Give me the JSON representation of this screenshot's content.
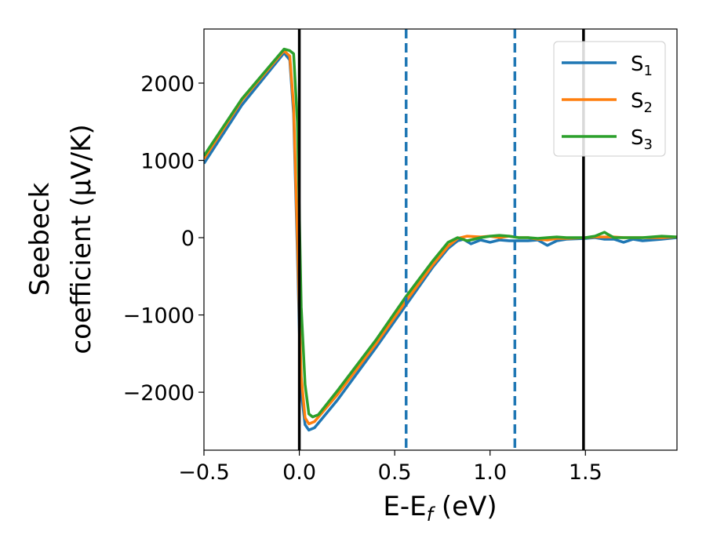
{
  "chart_data": {
    "type": "line",
    "xlabel": "E-E_f (eV)",
    "ylabel_line1": "Seebeck",
    "ylabel_line2": "coefficient  (μV/K)",
    "xlim": [
      -0.5,
      1.98
    ],
    "ylim": [
      -2750,
      2700
    ],
    "xticks": [
      -0.5,
      0.0,
      0.5,
      1.0,
      1.5
    ],
    "xtick_labels": [
      "−0.5",
      "0.0",
      "0.5",
      "1.0",
      "1.5"
    ],
    "yticks": [
      -2000,
      -1000,
      0,
      1000,
      2000
    ],
    "ytick_labels": [
      "−2000",
      "−1000",
      "0",
      "1000",
      "2000"
    ],
    "grid": false,
    "legend_position": "top-right",
    "reference_lines": [
      {
        "x": 0.0,
        "style": "solid",
        "color": "#000000"
      },
      {
        "x": 0.56,
        "style": "dashed",
        "color": "#1f77b4"
      },
      {
        "x": 1.13,
        "style": "dashed",
        "color": "#1f77b4"
      },
      {
        "x": 1.49,
        "style": "solid",
        "color": "#000000"
      }
    ],
    "series": [
      {
        "name": "S1",
        "sub": "1",
        "color": "#1f77b4",
        "points": [
          [
            -0.5,
            960
          ],
          [
            -0.3,
            1720
          ],
          [
            -0.08,
            2390
          ],
          [
            -0.05,
            2300
          ],
          [
            -0.03,
            1600
          ],
          [
            -0.01,
            -200
          ],
          [
            0.0,
            -1200
          ],
          [
            0.01,
            -2000
          ],
          [
            0.03,
            -2420
          ],
          [
            0.05,
            -2490
          ],
          [
            0.08,
            -2460
          ],
          [
            0.2,
            -2100
          ],
          [
            0.4,
            -1430
          ],
          [
            0.56,
            -870
          ],
          [
            0.7,
            -380
          ],
          [
            0.78,
            -140
          ],
          [
            0.83,
            -40
          ],
          [
            0.86,
            -20
          ],
          [
            0.9,
            -80
          ],
          [
            0.95,
            -30
          ],
          [
            1.0,
            -60
          ],
          [
            1.05,
            -30
          ],
          [
            1.1,
            -40
          ],
          [
            1.2,
            -40
          ],
          [
            1.25,
            -30
          ],
          [
            1.3,
            -100
          ],
          [
            1.35,
            -40
          ],
          [
            1.4,
            -20
          ],
          [
            1.5,
            -10
          ],
          [
            1.55,
            0
          ],
          [
            1.6,
            -20
          ],
          [
            1.65,
            -20
          ],
          [
            1.7,
            -60
          ],
          [
            1.75,
            -20
          ],
          [
            1.8,
            -40
          ],
          [
            1.9,
            -20
          ],
          [
            1.98,
            0
          ]
        ]
      },
      {
        "name": "S2",
        "sub": "2",
        "color": "#ff7f0e",
        "points": [
          [
            -0.5,
            1020
          ],
          [
            -0.3,
            1780
          ],
          [
            -0.08,
            2420
          ],
          [
            -0.05,
            2350
          ],
          [
            -0.03,
            1700
          ],
          [
            -0.01,
            0
          ],
          [
            0.0,
            -1000
          ],
          [
            0.01,
            -1800
          ],
          [
            0.03,
            -2330
          ],
          [
            0.05,
            -2410
          ],
          [
            0.08,
            -2380
          ],
          [
            0.2,
            -2030
          ],
          [
            0.4,
            -1380
          ],
          [
            0.56,
            -820
          ],
          [
            0.7,
            -350
          ],
          [
            0.78,
            -110
          ],
          [
            0.83,
            -10
          ],
          [
            0.88,
            20
          ],
          [
            0.95,
            10
          ],
          [
            1.0,
            20
          ],
          [
            1.05,
            0
          ],
          [
            1.1,
            20
          ],
          [
            1.15,
            0
          ],
          [
            1.2,
            0
          ],
          [
            1.25,
            -20
          ],
          [
            1.3,
            -30
          ],
          [
            1.35,
            -10
          ],
          [
            1.4,
            -10
          ],
          [
            1.5,
            0
          ],
          [
            1.55,
            10
          ],
          [
            1.6,
            10
          ],
          [
            1.65,
            10
          ],
          [
            1.7,
            0
          ],
          [
            1.75,
            0
          ],
          [
            1.8,
            0
          ],
          [
            1.9,
            0
          ],
          [
            1.98,
            10
          ]
        ]
      },
      {
        "name": "S3",
        "sub": "3",
        "color": "#2ca02c",
        "points": [
          [
            -0.5,
            1060
          ],
          [
            -0.3,
            1800
          ],
          [
            -0.08,
            2440
          ],
          [
            -0.05,
            2420
          ],
          [
            -0.03,
            2380
          ],
          [
            -0.01,
            1500
          ],
          [
            0.0,
            300
          ],
          [
            0.01,
            -900
          ],
          [
            0.03,
            -1900
          ],
          [
            0.05,
            -2280
          ],
          [
            0.07,
            -2320
          ],
          [
            0.1,
            -2290
          ],
          [
            0.2,
            -1980
          ],
          [
            0.4,
            -1330
          ],
          [
            0.56,
            -760
          ],
          [
            0.7,
            -300
          ],
          [
            0.78,
            -60
          ],
          [
            0.83,
            0
          ],
          [
            0.88,
            -40
          ],
          [
            0.95,
            0
          ],
          [
            1.0,
            20
          ],
          [
            1.05,
            30
          ],
          [
            1.1,
            20
          ],
          [
            1.15,
            0
          ],
          [
            1.2,
            0
          ],
          [
            1.25,
            -10
          ],
          [
            1.3,
            0
          ],
          [
            1.35,
            10
          ],
          [
            1.4,
            0
          ],
          [
            1.5,
            0
          ],
          [
            1.55,
            20
          ],
          [
            1.6,
            70
          ],
          [
            1.62,
            40
          ],
          [
            1.65,
            0
          ],
          [
            1.7,
            0
          ],
          [
            1.8,
            0
          ],
          [
            1.9,
            20
          ],
          [
            1.98,
            10
          ]
        ]
      }
    ]
  }
}
